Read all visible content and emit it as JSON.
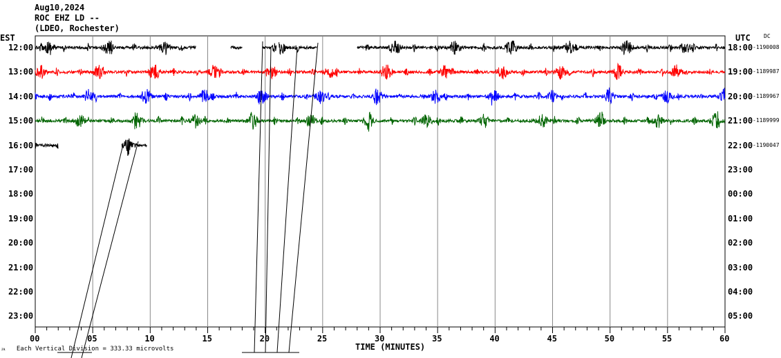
{
  "header": {
    "date": "Aug10,2024",
    "station": "ROC EHZ LD --",
    "network": "(LDEO, Rochester)"
  },
  "left_tz": "EST",
  "right_tz": "UTC",
  "dc_label": "DC",
  "chart_data": {
    "type": "line",
    "title": "ROC EHZ LD -- Aug10,2024",
    "xlabel": "TIME (MINUTES)",
    "xlim": [
      0,
      60
    ],
    "x_ticks": [
      "00",
      "05",
      "10",
      "15",
      "20",
      "25",
      "30",
      "35",
      "40",
      "45",
      "50",
      "55",
      "60"
    ],
    "scale_note": "Each Vertical Division =  333.33 microvolts",
    "rows": [
      {
        "est": "12:00",
        "utc": "18:00",
        "dc": "-1190008",
        "color": "#000000",
        "segments": [
          [
            0,
            14
          ],
          [
            17,
            18
          ],
          [
            19.8,
            21
          ],
          [
            21.2,
            24.5
          ],
          [
            28,
            60
          ]
        ]
      },
      {
        "est": "13:00",
        "utc": "19:00",
        "dc": "-1189987",
        "color": "#ff0000",
        "segments": [
          [
            0,
            60
          ]
        ]
      },
      {
        "est": "14:00",
        "utc": "20:00",
        "dc": "-1189967",
        "color": "#0000ff",
        "segments": [
          [
            0,
            60
          ]
        ]
      },
      {
        "est": "15:00",
        "utc": "21:00",
        "dc": "-1189999",
        "color": "#006400",
        "segments": [
          [
            0,
            60
          ]
        ]
      },
      {
        "est": "16:00",
        "utc": "22:00",
        "dc": "-1190047",
        "color": "#000000",
        "segments": [
          [
            0,
            2
          ],
          [
            7.5,
            9.7
          ]
        ]
      },
      {
        "est": "17:00",
        "utc": "23:00",
        "segments": []
      },
      {
        "est": "18:00",
        "utc": "00:00",
        "segments": []
      },
      {
        "est": "19:00",
        "utc": "01:00",
        "segments": []
      },
      {
        "est": "20:00",
        "utc": "02:00",
        "segments": []
      },
      {
        "est": "21:00",
        "utc": "03:00",
        "segments": []
      },
      {
        "est": "22:00",
        "utc": "04:00",
        "segments": []
      },
      {
        "est": "23:00",
        "utc": "05:00",
        "segments": []
      }
    ]
  }
}
